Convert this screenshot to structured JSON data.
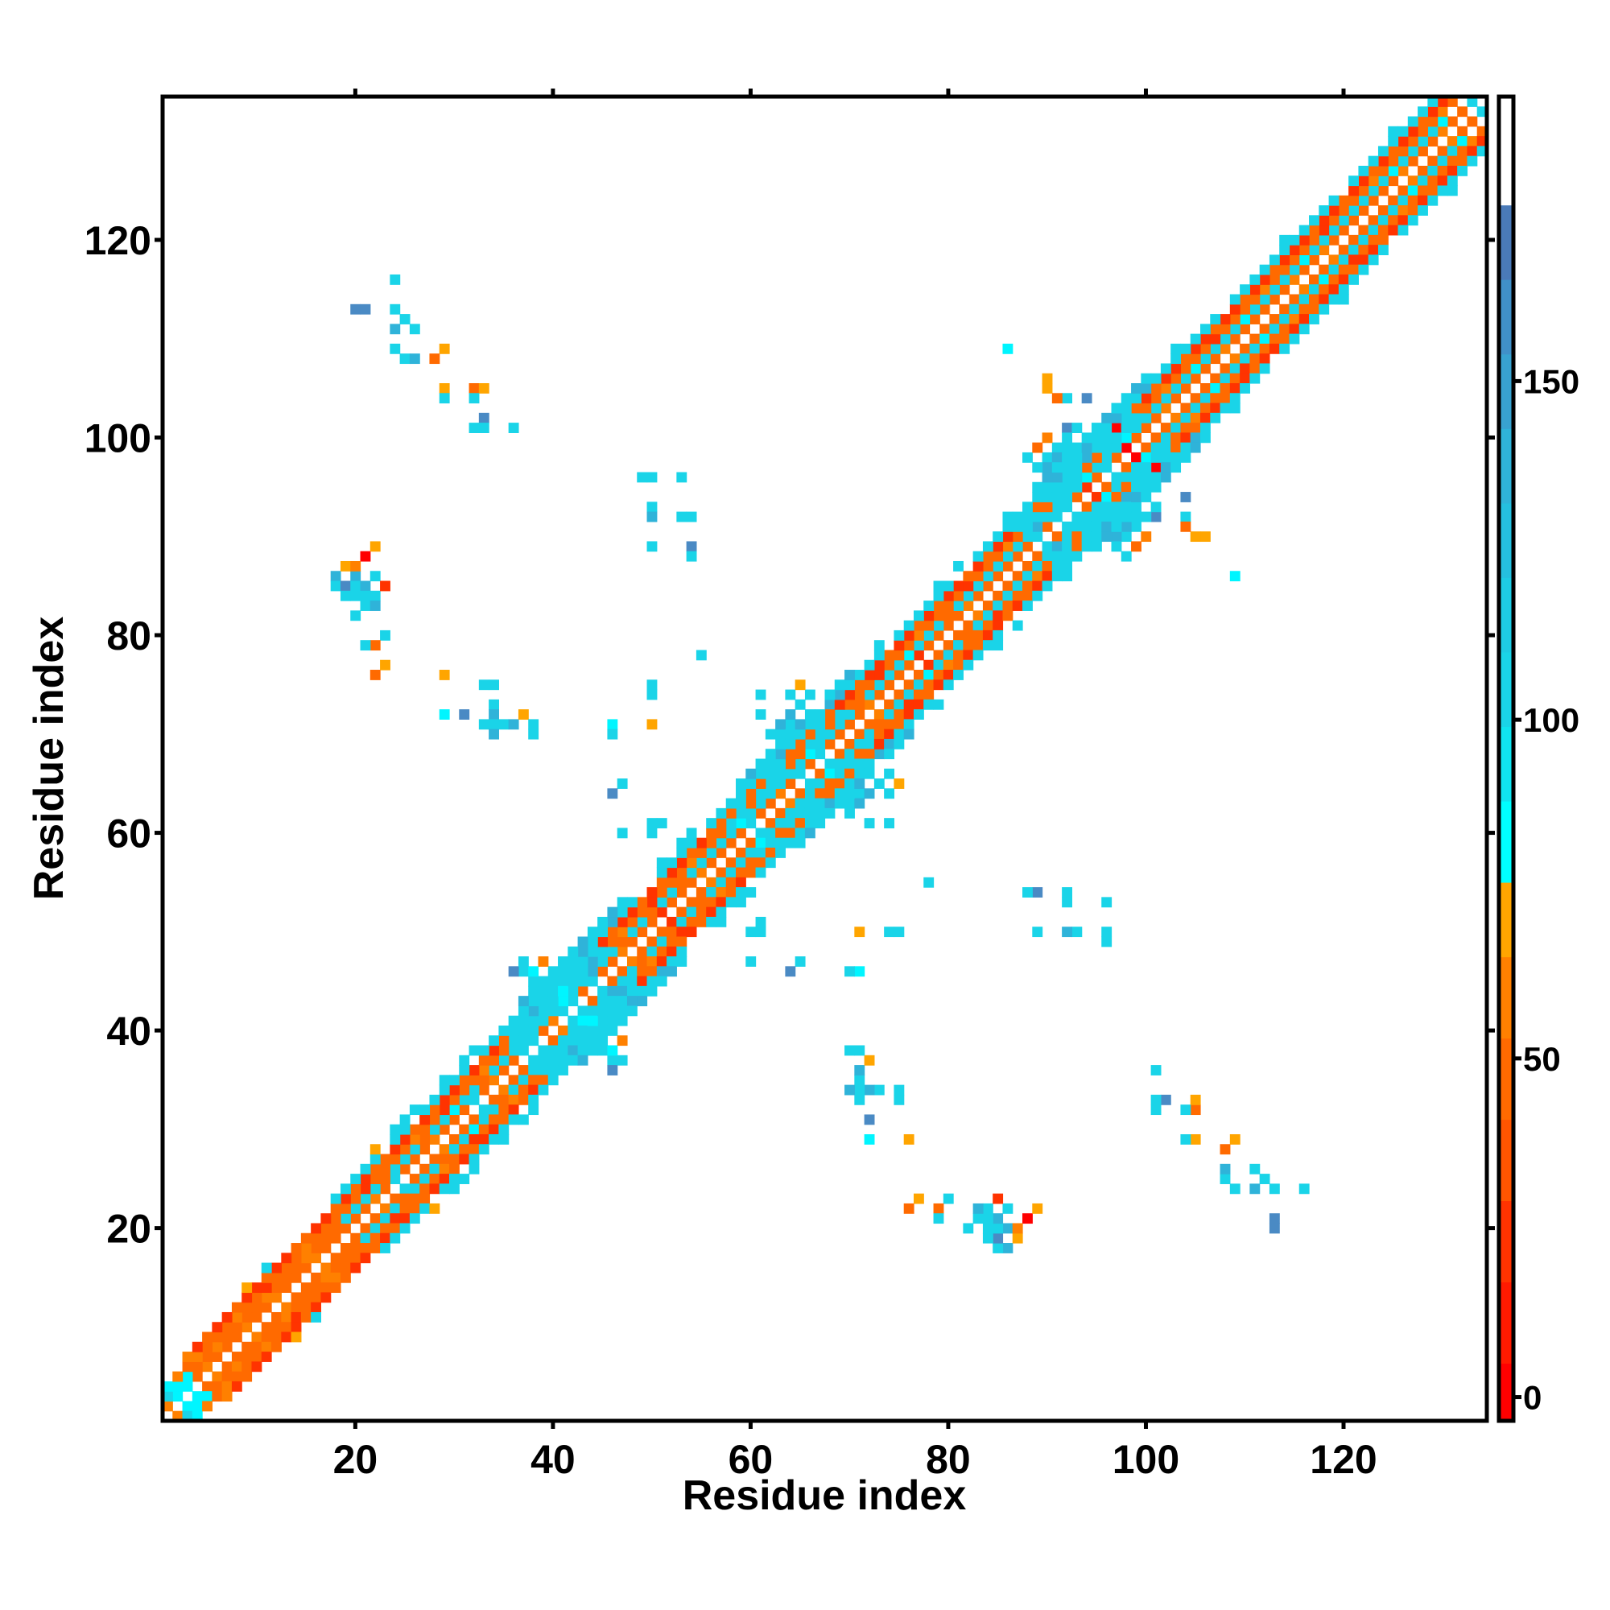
{
  "chart_data": {
    "type": "heatmap",
    "xlabel": "Residue index",
    "ylabel": "Residue index",
    "xlim": [
      0.5,
      134.5
    ],
    "ylim": [
      0.5,
      134.5
    ],
    "xticks": [
      20,
      40,
      60,
      80,
      100,
      120
    ],
    "yticks": [
      20,
      40,
      60,
      80,
      100,
      120
    ],
    "symmetric": true,
    "n_residues": 134,
    "codes": {
      "r": {
        "value": 0,
        "color": "#ff0000"
      },
      "R": {
        "value": 15,
        "color": "#ff3300"
      },
      "o": {
        "value": 35,
        "color": "#ff6a00"
      },
      "O": {
        "value": 50,
        "color": "#ff8000"
      },
      "y": {
        "value": 70,
        "color": "#ffa500"
      },
      "c": {
        "value": 85,
        "color": "#00f5ff"
      },
      "t": {
        "value": 100,
        "color": "#1ad4e8"
      },
      "s": {
        "value": 130,
        "color": "#2fb3d9"
      },
      "b": {
        "value": 165,
        "color": "#4a8ac4"
      }
    },
    "diagonal_band": {
      "1": "OccoOoooOooOoooOoooooOotoooOoootoOoottoOttotooOoooRoooOooootooOototooooOooooRooooOooooootottoRotoOoooOoooooOooooooOooOoooooooOoooOoot",
      "2": "tccooOooooOoooOooottttotttottcttotttttttcttsttottottotttttcttttttcttttottttctttottttttttsttttctttcttttttcttttctttttcttttttttcttttc",
      "3": "cOoOoooOooRoooOoooooRooooOooRoooOootttttcttstoOooRoooOooottotttoottotoooRoooOooooRoooOottotttoottttooOooooRooooOoooooRooooOooooooOoooo",
      "4": "..ORoRRoRRoRRooRRoRoRooRRoRoRRoRoRottsttttttRoRRoRoRRoRoootoottoootoRRoRRoRRoRoRRoRoRRttottttsttttoRoRRoRRoRRoRRoRRRoRRoRRoRoRRoRRoRR",
      "5": "........y.t......ttttt.tt.ttttt.ttttttssttsttstt..tttt.tttttttstttttstttt.tttttt..ttttttttsttsttsttsttttttt.ttttttttttt.tttttttttt....",
      "6": ".....................y.ttt..t.tt....ssttttsttst...t.tt....tsttttst.tts..t.....t.t....t..tsttsttsttst..t..........t..........t........."
    },
    "contacts": [
      [
        18,
        86,
        "s"
      ],
      [
        18,
        85,
        "t"
      ],
      [
        19,
        85,
        "b"
      ],
      [
        19,
        84,
        "t"
      ],
      [
        20,
        86,
        "s"
      ],
      [
        20,
        85,
        "t"
      ],
      [
        20,
        84,
        "t"
      ],
      [
        21,
        85,
        "s"
      ],
      [
        21,
        84,
        "t"
      ],
      [
        21,
        83,
        "t"
      ],
      [
        22,
        84,
        "t"
      ],
      [
        22,
        83,
        "s"
      ],
      [
        22,
        86,
        "t"
      ],
      [
        23,
        85,
        "R"
      ],
      [
        21,
        88,
        "r"
      ],
      [
        19,
        87,
        "y"
      ],
      [
        22,
        89,
        "y"
      ],
      [
        20,
        82,
        "t"
      ],
      [
        23,
        80,
        "t"
      ],
      [
        22,
        79,
        "o"
      ],
      [
        21,
        79,
        "t"
      ],
      [
        22,
        76,
        "o"
      ],
      [
        23,
        77,
        "y"
      ],
      [
        20,
        87,
        "O"
      ],
      [
        24,
        116,
        "t"
      ],
      [
        20,
        113,
        "b"
      ],
      [
        21,
        113,
        "b"
      ],
      [
        24,
        113,
        "t"
      ],
      [
        25,
        112,
        "t"
      ],
      [
        24,
        111,
        "s"
      ],
      [
        26,
        111,
        "t"
      ],
      [
        24,
        109,
        "t"
      ],
      [
        25,
        108,
        "t"
      ],
      [
        26,
        108,
        "s"
      ],
      [
        28,
        108,
        "o"
      ],
      [
        29,
        109,
        "y"
      ],
      [
        29,
        105,
        "y"
      ],
      [
        29,
        104,
        "t"
      ],
      [
        32,
        105,
        "o"
      ],
      [
        33,
        105,
        "y"
      ],
      [
        32,
        104,
        "t"
      ],
      [
        33,
        102,
        "b"
      ],
      [
        32,
        101,
        "t"
      ],
      [
        33,
        101,
        "t"
      ],
      [
        36,
        101,
        "t"
      ],
      [
        29,
        76,
        "y"
      ],
      [
        29,
        72,
        "c"
      ],
      [
        31,
        72,
        "b"
      ],
      [
        33,
        75,
        "t"
      ],
      [
        34,
        75,
        "t"
      ],
      [
        34,
        73,
        "t"
      ],
      [
        34,
        72,
        "s"
      ],
      [
        33,
        71,
        "t"
      ],
      [
        34,
        71,
        "t"
      ],
      [
        35,
        71,
        "t"
      ],
      [
        36,
        71,
        "s"
      ],
      [
        37,
        72,
        "y"
      ],
      [
        38,
        71,
        "t"
      ],
      [
        38,
        70,
        "t"
      ],
      [
        34,
        70,
        "s"
      ],
      [
        49,
        96,
        "t"
      ],
      [
        50,
        96,
        "t"
      ],
      [
        53,
        96,
        "t"
      ],
      [
        50,
        93,
        "t"
      ],
      [
        50,
        92,
        "s"
      ],
      [
        53,
        92,
        "t"
      ],
      [
        54,
        92,
        "t"
      ],
      [
        50,
        89,
        "t"
      ],
      [
        54,
        89,
        "b"
      ],
      [
        54,
        88,
        "t"
      ],
      [
        55,
        78,
        "t"
      ],
      [
        50,
        75,
        "t"
      ],
      [
        50,
        74,
        "t"
      ],
      [
        50,
        71,
        "y"
      ],
      [
        46,
        71,
        "c"
      ],
      [
        46,
        70,
        "t"
      ],
      [
        47,
        65,
        "t"
      ],
      [
        46,
        64,
        "b"
      ],
      [
        47,
        60,
        "t"
      ],
      [
        50,
        60,
        "t"
      ],
      [
        50,
        61,
        "t"
      ],
      [
        51,
        61,
        "t"
      ],
      [
        86,
        109,
        "c"
      ],
      [
        90,
        106,
        "y"
      ],
      [
        90,
        105,
        "y"
      ],
      [
        92,
        104,
        "t"
      ],
      [
        91,
        104,
        "o"
      ],
      [
        94,
        104,
        "b"
      ],
      [
        92,
        101,
        "b"
      ],
      [
        95,
        101,
        "t"
      ],
      [
        39,
        43,
        "t"
      ],
      [
        39,
        44,
        "t"
      ],
      [
        40,
        44,
        "t"
      ],
      [
        40,
        45,
        "t"
      ],
      [
        41,
        45,
        "t"
      ],
      [
        41,
        46,
        "t"
      ],
      [
        38,
        44,
        "t"
      ],
      [
        38,
        45,
        "t"
      ],
      [
        37,
        46,
        "t"
      ],
      [
        38,
        46,
        "c"
      ],
      [
        36,
        46,
        "b"
      ],
      [
        40,
        46,
        "t"
      ],
      [
        39,
        47,
        "O"
      ],
      [
        37,
        47,
        "t"
      ],
      [
        63,
        70,
        "t"
      ],
      [
        64,
        71,
        "t"
      ],
      [
        64,
        72,
        "s"
      ],
      [
        62,
        70,
        "t"
      ],
      [
        63,
        71,
        "s"
      ],
      [
        65,
        73,
        "t"
      ],
      [
        64,
        74,
        "t"
      ],
      [
        61,
        72,
        "t"
      ],
      [
        61,
        74,
        "t"
      ],
      [
        66,
        74,
        "t"
      ],
      [
        68,
        73,
        "s"
      ],
      [
        65,
        75,
        "y"
      ],
      [
        90,
        98,
        "t"
      ],
      [
        91,
        99,
        "t"
      ],
      [
        92,
        99,
        "t"
      ],
      [
        90,
        97,
        "s"
      ],
      [
        89,
        97,
        "t"
      ],
      [
        91,
        98,
        "s"
      ],
      [
        93,
        99,
        "t"
      ],
      [
        88,
        98,
        "t"
      ],
      [
        89,
        99,
        "o"
      ],
      [
        90,
        100,
        "O"
      ],
      [
        92,
        100,
        "t"
      ],
      [
        93,
        101,
        "t"
      ],
      [
        95,
        101,
        "t"
      ],
      [
        97,
        101,
        "r"
      ],
      [
        98,
        99,
        "r"
      ]
    ],
    "colorbar": {
      "range": [
        -3.5,
        192
      ],
      "ticks": [
        0,
        50,
        100,
        150
      ],
      "tick_labels": [
        "0",
        "50",
        "100",
        "150"
      ],
      "bands": [
        {
          "from": -3.5,
          "to": 5,
          "color": "#ff0000"
        },
        {
          "from": 5,
          "to": 17,
          "color": "#ff1a00"
        },
        {
          "from": 17,
          "to": 29,
          "color": "#ff3300"
        },
        {
          "from": 29,
          "to": 41,
          "color": "#ff5500"
        },
        {
          "from": 41,
          "to": 53,
          "color": "#ff6a00"
        },
        {
          "from": 53,
          "to": 65,
          "color": "#ff8000"
        },
        {
          "from": 65,
          "to": 76,
          "color": "#ffa500"
        },
        {
          "from": 76,
          "to": 88,
          "color": "#00ffff"
        },
        {
          "from": 88,
          "to": 99,
          "color": "#10e4f0"
        },
        {
          "from": 99,
          "to": 110,
          "color": "#1ad4e8"
        },
        {
          "from": 110,
          "to": 121,
          "color": "#1ecbe4"
        },
        {
          "from": 121,
          "to": 132,
          "color": "#25bfdf"
        },
        {
          "from": 132,
          "to": 143,
          "color": "#2fb3d9"
        },
        {
          "from": 143,
          "to": 154,
          "color": "#38a2d0"
        },
        {
          "from": 154,
          "to": 165,
          "color": "#4090c8"
        },
        {
          "from": 165,
          "to": 176,
          "color": "#4a7ab8"
        },
        {
          "from": 176,
          "to": 192,
          "color": "#ffffff"
        }
      ]
    }
  }
}
